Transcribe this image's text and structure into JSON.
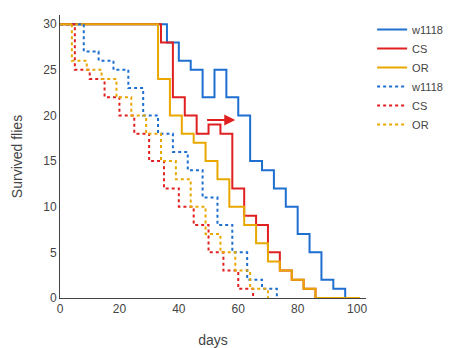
{
  "chart_data": {
    "type": "step",
    "xlabel": "days",
    "ylabel": "Survived flies",
    "xlim": [
      0,
      103
    ],
    "ylim": [
      0,
      31
    ],
    "xticks": [
      0,
      20,
      40,
      60,
      80,
      100
    ],
    "yticks": [
      0,
      5,
      10,
      15,
      20,
      25,
      30
    ],
    "grid": false,
    "legend": "upper right",
    "series": [
      {
        "name": "w1118",
        "color": "#1F6FD0",
        "line_style": "solid",
        "x": [
          0,
          36,
          36,
          40,
          40,
          44,
          44,
          48,
          48,
          52,
          52,
          56,
          56,
          60,
          60,
          64,
          64,
          68,
          68,
          72,
          72,
          76,
          76,
          80,
          80,
          84,
          84,
          88,
          88,
          92,
          92,
          96,
          96,
          100,
          100
        ],
        "values": [
          30,
          30,
          28,
          28,
          26,
          26,
          25,
          25,
          22,
          22,
          25,
          25,
          22,
          22,
          20,
          20,
          15,
          15,
          14,
          14,
          12,
          12,
          10,
          10,
          7,
          7,
          5,
          5,
          2,
          2,
          1,
          1,
          0,
          0,
          0
        ]
      },
      {
        "name": "CS",
        "color": "#E02020",
        "line_style": "solid",
        "x": [
          0,
          34,
          34,
          38,
          38,
          42,
          42,
          46,
          46,
          50,
          50,
          54,
          54,
          58,
          58,
          62,
          62,
          66,
          66,
          70,
          70,
          74,
          74,
          78,
          78,
          82,
          82,
          86,
          86,
          90,
          90,
          94,
          94,
          98,
          98
        ],
        "values": [
          30,
          30,
          28,
          28,
          22,
          22,
          20,
          20,
          18,
          18,
          19,
          19,
          18,
          18,
          12,
          12,
          9,
          9,
          8,
          8,
          5,
          5,
          3,
          3,
          2,
          2,
          1,
          1,
          0,
          0,
          0,
          0,
          0,
          0,
          0
        ]
      },
      {
        "name": "OR",
        "color": "#E8A800",
        "line_style": "solid",
        "x": [
          0,
          33,
          33,
          37,
          37,
          41,
          41,
          45,
          45,
          49,
          49,
          53,
          53,
          57,
          57,
          62,
          62,
          66,
          66,
          70,
          70,
          74,
          74,
          78,
          78,
          82,
          82,
          86,
          86,
          90,
          90,
          94,
          94,
          98,
          98,
          101,
          101
        ],
        "values": [
          30,
          30,
          24,
          24,
          20,
          20,
          18,
          18,
          17,
          17,
          15,
          15,
          13,
          13,
          10,
          10,
          8,
          8,
          6,
          6,
          4,
          4,
          3,
          3,
          2,
          2,
          1,
          1,
          0,
          0,
          0,
          0,
          0,
          0,
          0,
          0,
          0
        ]
      },
      {
        "name": "w1118",
        "color": "#1F6FD0",
        "line_style": "dotted",
        "x": [
          0,
          8,
          8,
          13,
          13,
          18,
          18,
          23,
          23,
          28,
          28,
          33,
          33,
          38,
          38,
          43,
          43,
          48,
          48,
          53,
          53,
          58,
          58,
          63,
          63,
          68,
          68,
          73,
          73
        ],
        "values": [
          30,
          30,
          27,
          27,
          26,
          26,
          25,
          25,
          23,
          23,
          20,
          20,
          18,
          18,
          16,
          16,
          14,
          14,
          11,
          11,
          8,
          8,
          5,
          5,
          2,
          2,
          1,
          1,
          0
        ]
      },
      {
        "name": "CS",
        "color": "#E02020",
        "line_style": "dotted",
        "x": [
          0,
          5,
          5,
          10,
          10,
          15,
          15,
          20,
          20,
          25,
          25,
          30,
          30,
          35,
          35,
          40,
          40,
          45,
          45,
          50,
          50,
          55,
          55,
          60,
          60,
          65,
          65
        ],
        "values": [
          30,
          30,
          25,
          25,
          24,
          24,
          22,
          22,
          20,
          20,
          18,
          18,
          15,
          15,
          12,
          12,
          10,
          10,
          8,
          8,
          5,
          5,
          3,
          3,
          1,
          1,
          0
        ]
      },
      {
        "name": "OR",
        "color": "#E8A800",
        "line_style": "dotted",
        "x": [
          0,
          4,
          4,
          9,
          9,
          14,
          14,
          19,
          19,
          24,
          24,
          29,
          29,
          34,
          34,
          39,
          39,
          44,
          44,
          49,
          49,
          54,
          54,
          59,
          59,
          64,
          64,
          70,
          70
        ],
        "values": [
          30,
          30,
          26,
          26,
          25,
          25,
          24,
          24,
          22,
          22,
          20,
          20,
          18,
          18,
          15,
          15,
          13,
          13,
          10,
          10,
          7,
          7,
          5,
          5,
          3,
          3,
          1,
          1,
          0
        ]
      }
    ],
    "arrows": [
      {
        "x_start": 49,
        "y_start": 19.5,
        "x_end": 59,
        "y_end": 19.5,
        "color": "#E02020"
      }
    ]
  }
}
